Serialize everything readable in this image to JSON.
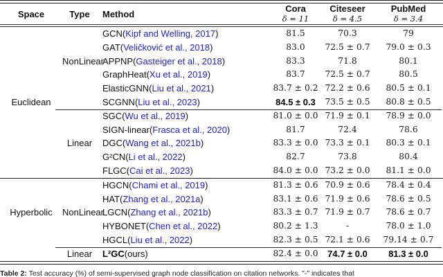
{
  "colors": {
    "citation_blue": "#2222CC"
  },
  "header": {
    "space": "Space",
    "type": "Type",
    "method": "Method",
    "datasets": [
      {
        "name": "Cora",
        "delta": "δ = 11"
      },
      {
        "name": "Citeseer",
        "delta": "δ = 4.5"
      },
      {
        "name": "PubMed",
        "delta": "δ = 3.4"
      }
    ]
  },
  "groups": [
    {
      "space": "Euclidean",
      "subgroups": [
        {
          "type": "NonLinear",
          "rows": [
            {
              "method": "GCN(",
              "cite": "Kipf and Welling, 2017",
              "close": ")",
              "cora": "81.5",
              "citeseer": "70.3",
              "pubmed": "79",
              "bold": []
            },
            {
              "method": "GAT(",
              "cite": "Veličković et al., 2018",
              "close": ")",
              "cora": "83.0",
              "citeseer": "72.5 ± 0.7",
              "pubmed": "79.0 ± 0.3",
              "bold": []
            },
            {
              "method": "APPNP(",
              "cite": "Gasteiger et al., 2018",
              "close": ")",
              "cora": "83.3",
              "citeseer": "71.8",
              "pubmed": "80.1",
              "bold": []
            },
            {
              "method": "GraphHeat(",
              "cite": "Xu et al., 2019",
              "close": ")",
              "cora": "83.7",
              "citeseer": "72.5 ± 0.7",
              "pubmed": "80.5",
              "bold": []
            },
            {
              "method": "ElasticGNN(",
              "cite": "Liu et al., 2021",
              "close": ")",
              "cora": "83.7 ± 0.2",
              "citeseer": "72.2 ± 0.6",
              "pubmed": "80.5 ± 0.1",
              "bold": []
            },
            {
              "method": "SCGNN(",
              "cite": "Liu et al., 2023",
              "close": ")",
              "cora": "84.5 ± 0.3",
              "citeseer": "73.5 ± 0.5",
              "pubmed": "80.8 ± 0.5",
              "bold": [
                "cora"
              ]
            }
          ]
        },
        {
          "type": "Linear",
          "rows": [
            {
              "method": "SGC(",
              "cite": "Wu et al., 2019",
              "close": ")",
              "cora": "81.0 ± 0.0",
              "citeseer": "71.9 ± 0.1",
              "pubmed": "78.9 ± 0.0",
              "bold": []
            },
            {
              "method": "SIGN-linear(",
              "cite": "Frasca et al., 2020",
              "close": ")",
              "cora": "81.7",
              "citeseer": "72.4",
              "pubmed": "78.6",
              "bold": []
            },
            {
              "method": "DGC(",
              "cite": "Wang et al., 2021b",
              "close": ")",
              "cora": "83.3 ± 0.0",
              "citeseer": "73.3 ± 0.1",
              "pubmed": "80.3 ± 0.1",
              "bold": []
            },
            {
              "method": "G²CN(",
              "cite": "Li et al., 2022",
              "close": ")",
              "cora": "82.7",
              "citeseer": "73.8",
              "pubmed": "80.4",
              "bold": []
            },
            {
              "method": "FLGC(",
              "cite": "Cai et al., 2023",
              "close": ")",
              "cora": "84.0 ± 0.0",
              "citeseer": "73.2 ± 0.0",
              "pubmed": "81.1 ± 0.0",
              "bold": []
            }
          ]
        }
      ]
    },
    {
      "space": "Hyperbolic",
      "subgroups": [
        {
          "type": "NonLinear",
          "rows": [
            {
              "method": "HGCN(",
              "cite": "Chami et al., 2019",
              "close": ")",
              "cora": "81.3 ± 0.6",
              "citeseer": "70.9 ± 0.6",
              "pubmed": "78.4 ± 0.4",
              "bold": []
            },
            {
              "method": "HAT(",
              "cite": "Zhang et al., 2021a",
              "close": ")",
              "cora": "83.1 ± 0.6",
              "citeseer": "71.9 ± 0.6",
              "pubmed": "78.6 ± 0.5",
              "bold": []
            },
            {
              "method": "LGCN(",
              "cite": "Zhang et al., 2021b",
              "close": ")",
              "cora": "83.3 ± 0.7",
              "citeseer": "71.9 ± 0.7",
              "pubmed": "78.6 ± 0.7",
              "bold": []
            },
            {
              "method": "HYBONET(",
              "cite": "Chen et al., 2022",
              "close": ")",
              "cora": "80.2 ± 1.3",
              "citeseer": "-",
              "pubmed": "78.0 ± 1.0",
              "bold": []
            },
            {
              "method": "HGCL(",
              "cite": "Liu et al., 2022",
              "close": ")",
              "cora": "82.3 ± 0.5",
              "citeseer": "72.1 ± 0.6",
              "pubmed": "79.14 ± 0.7",
              "bold": []
            }
          ]
        },
        {
          "type": "Linear",
          "rows": [
            {
              "method": "L²GC",
              "method_bold": true,
              "cite": "",
              "close": "(ours)",
              "cora": "82.4 ± 0.0",
              "citeseer": "74.7 ± 0.0",
              "pubmed": "81.3 ± 0.0",
              "bold": [
                "citeseer",
                "pubmed"
              ]
            }
          ]
        }
      ]
    }
  ],
  "caption": {
    "label": "Table 2:",
    "text": "Test accuracy (%) of semi-supervised graph node classification on citation networks. \"-\" indicates that"
  }
}
